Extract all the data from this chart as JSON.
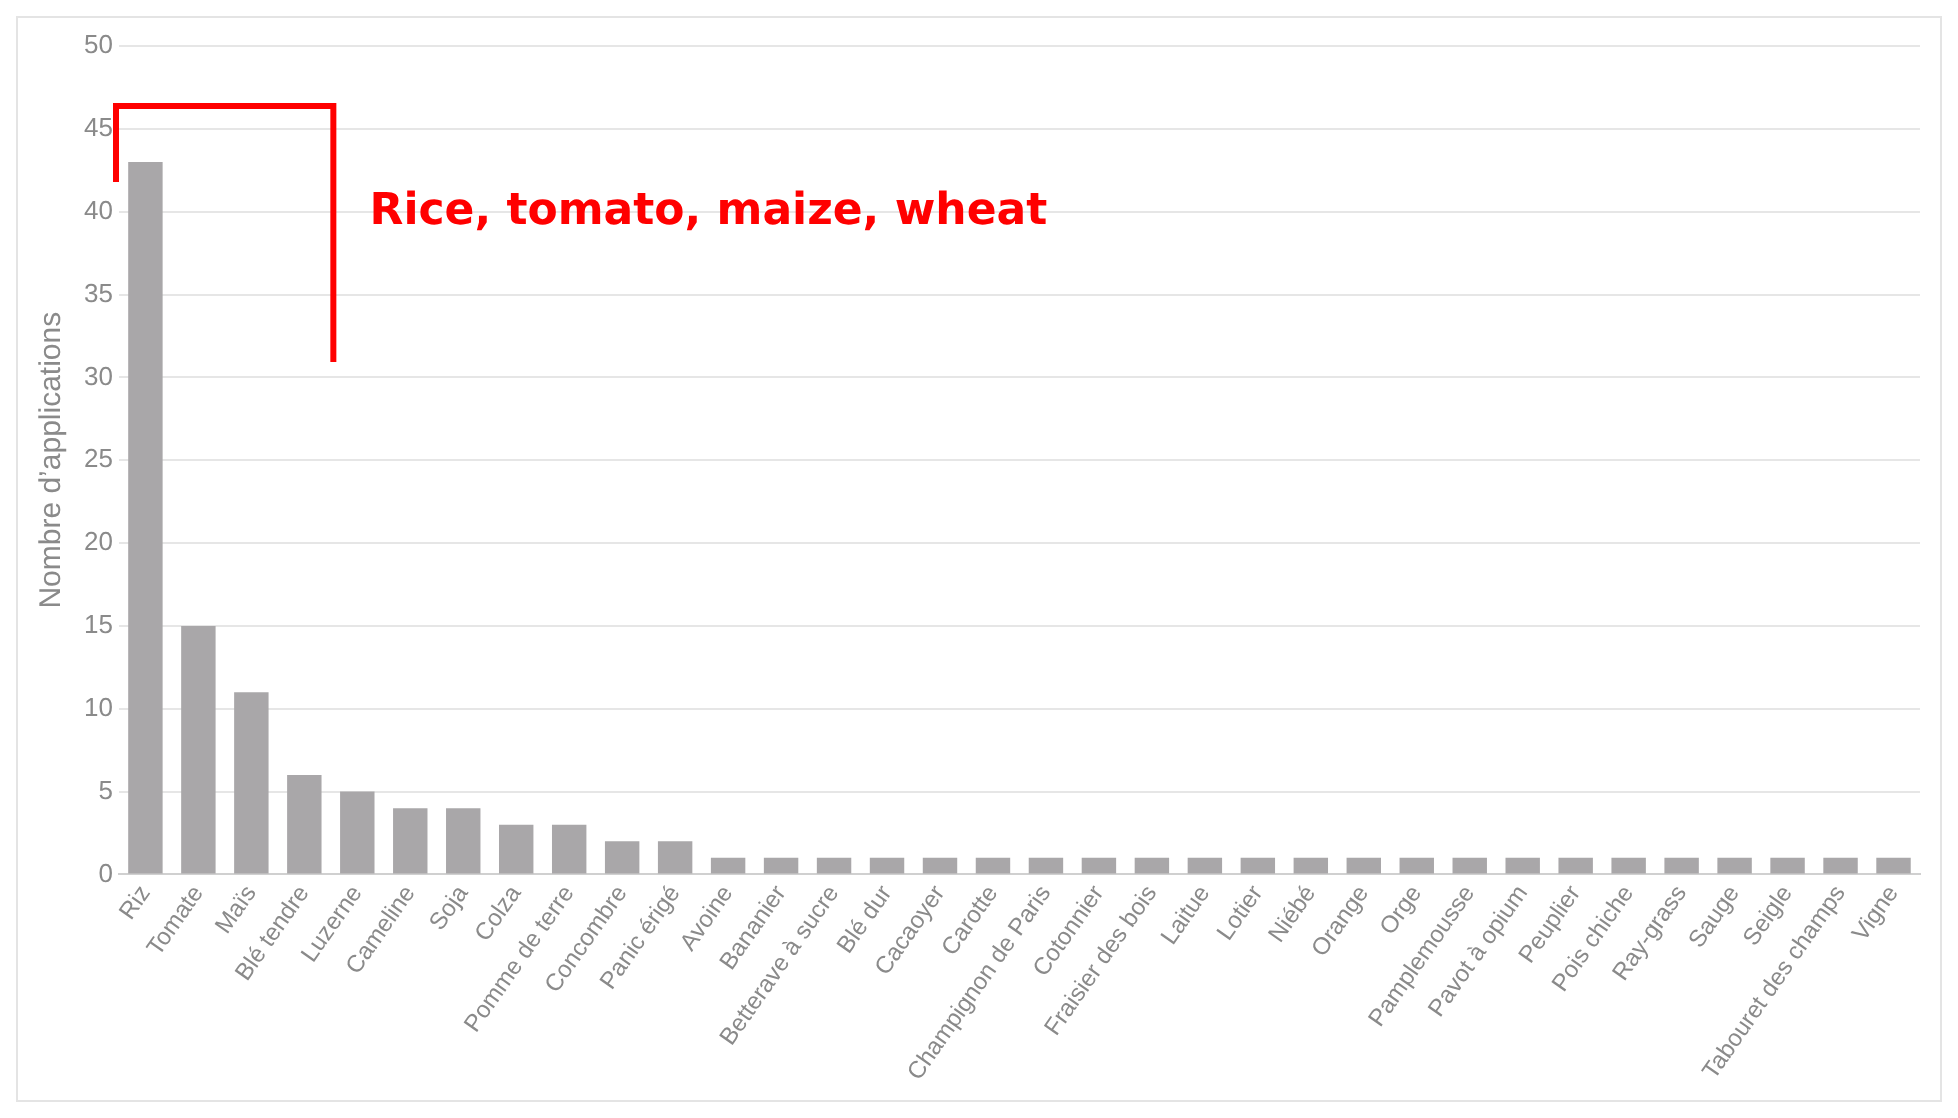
{
  "chart_data": {
    "type": "bar",
    "ylabel": "Nombre d’applications",
    "categories": [
      "Riz",
      "Tomate",
      "Maïs",
      "Blé tendre",
      "Luzerne",
      "Cameline",
      "Soja",
      "Colza",
      "Pomme de terre",
      "Concombre",
      "Panic érigé",
      "Avoine",
      "Bananier",
      "Betterave à sucre",
      "Blé dur",
      "Cacaoyer",
      "Carotte",
      "Champignon de Paris",
      "Cotonnier",
      "Fraisier des bois",
      "Laitue",
      "Lotier",
      "Niébé",
      "Orange",
      "Orge",
      "Pamplemousse",
      "Pavot à opium",
      "Peuplier",
      "Pois chiche",
      "Ray-grass",
      "Sauge",
      "Seigle",
      "Tabouret des champs",
      "Vigne"
    ],
    "values": [
      43,
      15,
      11,
      6,
      5,
      4,
      4,
      3,
      3,
      2,
      2,
      1,
      1,
      1,
      1,
      1,
      1,
      1,
      1,
      1,
      1,
      1,
      1,
      1,
      1,
      1,
      1,
      1,
      1,
      1,
      1,
      1,
      1,
      1
    ],
    "color": "#a9a7a9",
    "ylim": [
      0,
      50
    ],
    "yticks": [
      0,
      5,
      10,
      15,
      20,
      25,
      30,
      35,
      40,
      45,
      50
    ],
    "grid": "y",
    "legend": false,
    "annotations": [
      "Rice, tomato, maize, wheat"
    ]
  }
}
